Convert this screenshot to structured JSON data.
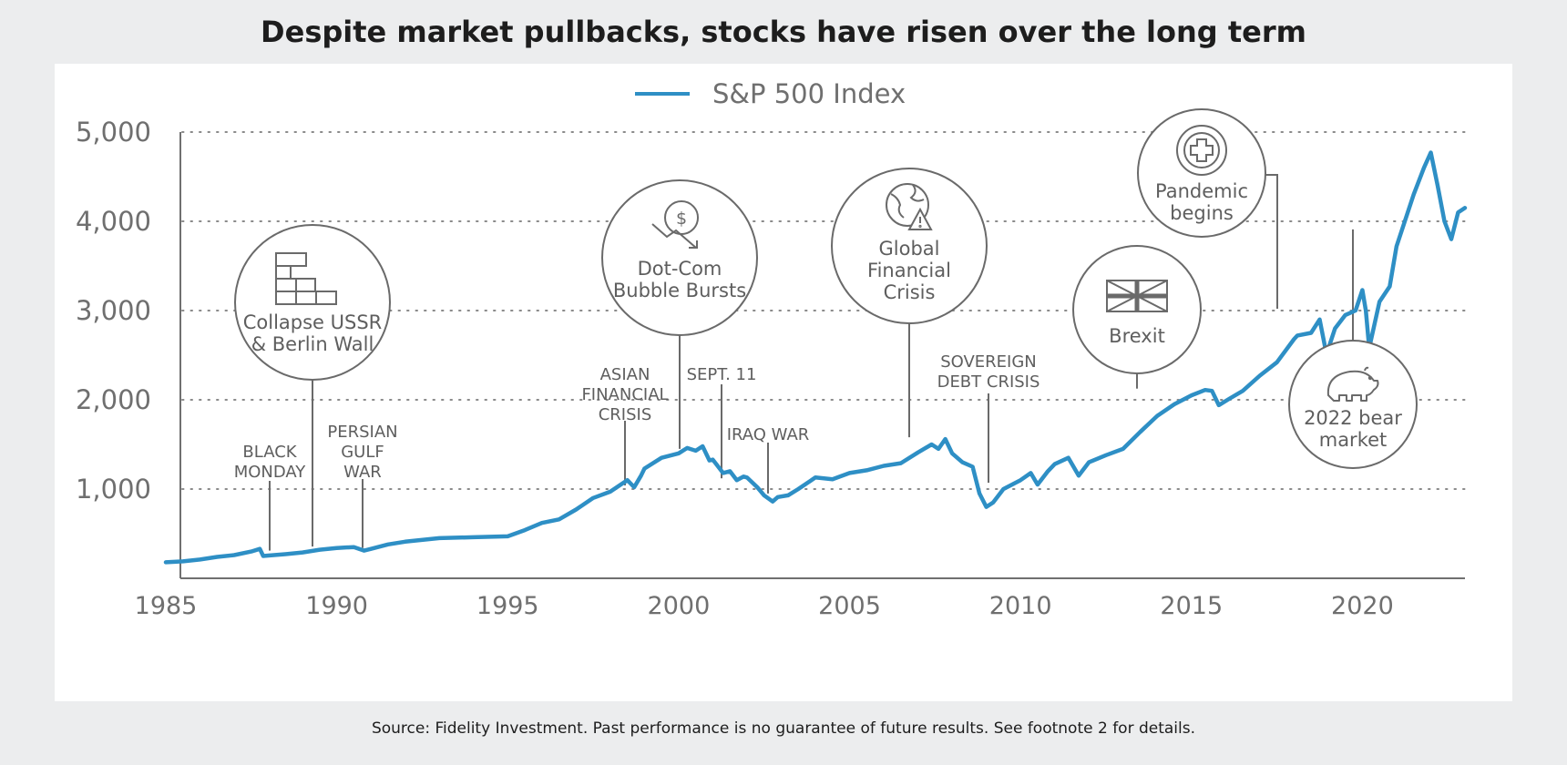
{
  "title": "Despite market pullbacks, stocks have risen over the long term",
  "source": "Source: Fidelity Investment. Past performance is no guarantee of future results. See footnote 2 for details.",
  "colors": {
    "line": "#2e8fc5",
    "axis": "#707070",
    "grid": "#8a8a8a",
    "annotation": "#6a6a6a",
    "background": "#ecedee",
    "panel": "#ffffff"
  },
  "chart_data": {
    "type": "line",
    "legend": {
      "label": "S&P 500 Index",
      "position": "top-center"
    },
    "xlim": [
      1985,
      2023
    ],
    "ylim": [
      0,
      5000
    ],
    "x_ticks": [
      1985,
      1990,
      1995,
      2000,
      2005,
      2010,
      2015,
      2020
    ],
    "x_tick_labels": [
      "1985",
      "1990",
      "1995",
      "2000",
      "2005",
      "2010",
      "2015",
      "2020"
    ],
    "y_ticks": [
      1000,
      2000,
      3000,
      4000,
      5000
    ],
    "y_tick_labels": [
      "1,000",
      "2,000",
      "3,000",
      "4,000",
      "5,000"
    ],
    "grid": "horizontal dotted",
    "series": [
      {
        "name": "S&P 500 Index",
        "x": [
          1985.0,
          1985.5,
          1986.0,
          1986.5,
          1987.0,
          1987.5,
          1987.75,
          1987.85,
          1988.0,
          1988.5,
          1989.0,
          1989.5,
          1990.0,
          1990.5,
          1990.8,
          1991.0,
          1991.5,
          1992.0,
          1993.0,
          1994.0,
          1995.0,
          1995.5,
          1996.0,
          1996.5,
          1997.0,
          1997.5,
          1998.0,
          1998.5,
          1998.7,
          1998.9,
          1999.0,
          1999.5,
          2000.0,
          2000.25,
          2000.5,
          2000.7,
          2000.9,
          2001.0,
          2001.3,
          2001.5,
          2001.7,
          2001.9,
          2002.0,
          2002.3,
          2002.5,
          2002.75,
          2002.9,
          2003.2,
          2003.5,
          2004.0,
          2004.5,
          2005.0,
          2005.5,
          2006.0,
          2006.5,
          2007.0,
          2007.4,
          2007.6,
          2007.8,
          2008.0,
          2008.3,
          2008.6,
          2008.8,
          2009.0,
          2009.2,
          2009.5,
          2010.0,
          2010.3,
          2010.5,
          2010.8,
          2011.0,
          2011.4,
          2011.7,
          2012.0,
          2012.5,
          2013.0,
          2013.5,
          2014.0,
          2014.5,
          2015.0,
          2015.4,
          2015.6,
          2015.8,
          2016.1,
          2016.5,
          2017.0,
          2017.5,
          2018.0,
          2018.1,
          2018.5,
          2018.75,
          2018.95,
          2019.2,
          2019.5,
          2019.8,
          2020.0,
          2020.1,
          2020.2,
          2020.5,
          2020.8,
          2021.0,
          2021.5,
          2021.8,
          2022.0,
          2022.2,
          2022.4,
          2022.6,
          2022.8,
          2023.0
        ],
        "y": [
          180,
          190,
          210,
          240,
          260,
          300,
          330,
          250,
          255,
          270,
          290,
          320,
          340,
          350,
          310,
          330,
          380,
          410,
          450,
          460,
          470,
          540,
          620,
          660,
          770,
          900,
          970,
          1100,
          1020,
          1150,
          1230,
          1350,
          1400,
          1460,
          1430,
          1480,
          1320,
          1330,
          1180,
          1200,
          1100,
          1140,
          1130,
          1020,
          930,
          860,
          910,
          930,
          1000,
          1130,
          1110,
          1180,
          1210,
          1260,
          1290,
          1410,
          1500,
          1450,
          1560,
          1400,
          1300,
          1250,
          950,
          800,
          850,
          1000,
          1100,
          1180,
          1050,
          1200,
          1280,
          1350,
          1150,
          1300,
          1380,
          1450,
          1640,
          1820,
          1950,
          2050,
          2110,
          2100,
          1940,
          2010,
          2100,
          2270,
          2420,
          2680,
          2720,
          2750,
          2900,
          2510,
          2800,
          2950,
          3000,
          3230,
          3000,
          2580,
          3100,
          3270,
          3720,
          4300,
          4600,
          4770,
          4400,
          4000,
          3800,
          4100,
          4150
        ]
      }
    ],
    "annotations": [
      {
        "label": "BLACK MONDAY",
        "lines": [
          "BLACK",
          "MONDAY"
        ],
        "x": 1987.8,
        "style": "text"
      },
      {
        "label": "Collapse USSR & Berlin Wall",
        "lines": [
          "Collapse USSR",
          "& Berlin Wall"
        ],
        "x": 1989.9,
        "style": "circle",
        "icon": "brick-wall-icon"
      },
      {
        "label": "PERSIAN GULF WAR",
        "lines": [
          "PERSIAN",
          "GULF",
          "WAR"
        ],
        "x": 1990.9,
        "style": "text"
      },
      {
        "label": "ASIAN FINANCIAL CRISIS",
        "lines": [
          "ASIAN",
          "FINANCIAL",
          "CRISIS"
        ],
        "x": 1998.7,
        "style": "text"
      },
      {
        "label": "Dot-Com Bubble Bursts",
        "lines": [
          "Dot-Com",
          "Bubble Bursts"
        ],
        "x": 2000.5,
        "style": "circle",
        "icon": "dollar-down-icon"
      },
      {
        "label": "SEPT. 11",
        "lines": [
          "SEPT. 11"
        ],
        "x": 2001.7,
        "style": "text"
      },
      {
        "label": "IRAQ WAR",
        "lines": [
          "IRAQ WAR"
        ],
        "x": 2003.2,
        "style": "text"
      },
      {
        "label": "Global Financial Crisis",
        "lines": [
          "Global",
          "Financial",
          "Crisis"
        ],
        "x": 2007.8,
        "style": "circle",
        "icon": "globe-warning-icon"
      },
      {
        "label": "SOVEREIGN DEBT CRISIS",
        "lines": [
          "SOVEREIGN",
          "DEBT CRISIS"
        ],
        "x": 2010.5,
        "style": "text"
      },
      {
        "label": "Brexit",
        "lines": [
          "Brexit"
        ],
        "x": 2015.5,
        "style": "circle",
        "icon": "union-jack-icon"
      },
      {
        "label": "Pandemic begins",
        "lines": [
          "Pandemic",
          "begins"
        ],
        "x": 2020.1,
        "style": "circle",
        "icon": "medical-cross-icon"
      },
      {
        "label": "2022 bear market",
        "lines": [
          "2022 bear",
          "market"
        ],
        "x": 2022.4,
        "style": "circle",
        "icon": "bear-icon"
      }
    ]
  }
}
